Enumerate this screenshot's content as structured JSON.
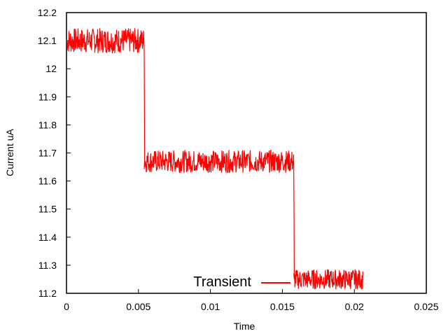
{
  "chart_data": {
    "type": "line",
    "xlabel": "Time",
    "ylabel": "Current uA",
    "xlim": [
      0,
      0.025
    ],
    "ylim": [
      11.2,
      12.2
    ],
    "x_ticks": [
      "0",
      "0.005",
      "0.01",
      "0.015",
      "0.02",
      "0.025"
    ],
    "y_ticks": [
      "11.2",
      "11.3",
      "11.4",
      "11.5",
      "11.6",
      "11.7",
      "11.8",
      "11.9",
      "12",
      "12.1",
      "12.2"
    ],
    "grid": false,
    "legend_position": "bottom-center",
    "series": [
      {
        "name": "Transient",
        "color": "#ff0000",
        "noisy": true,
        "segments": [
          {
            "x_start": 0,
            "x_end": 0.0054,
            "mean": 12.1,
            "band": [
              12.05,
              12.15
            ]
          },
          {
            "x_start": 0.0054,
            "x_end": 0.0158,
            "mean": 11.67,
            "band": [
              11.63,
              11.72
            ]
          },
          {
            "x_start": 0.0158,
            "x_end": 0.0206,
            "mean": 11.25,
            "band": [
              11.22,
              11.3
            ]
          }
        ]
      }
    ]
  }
}
